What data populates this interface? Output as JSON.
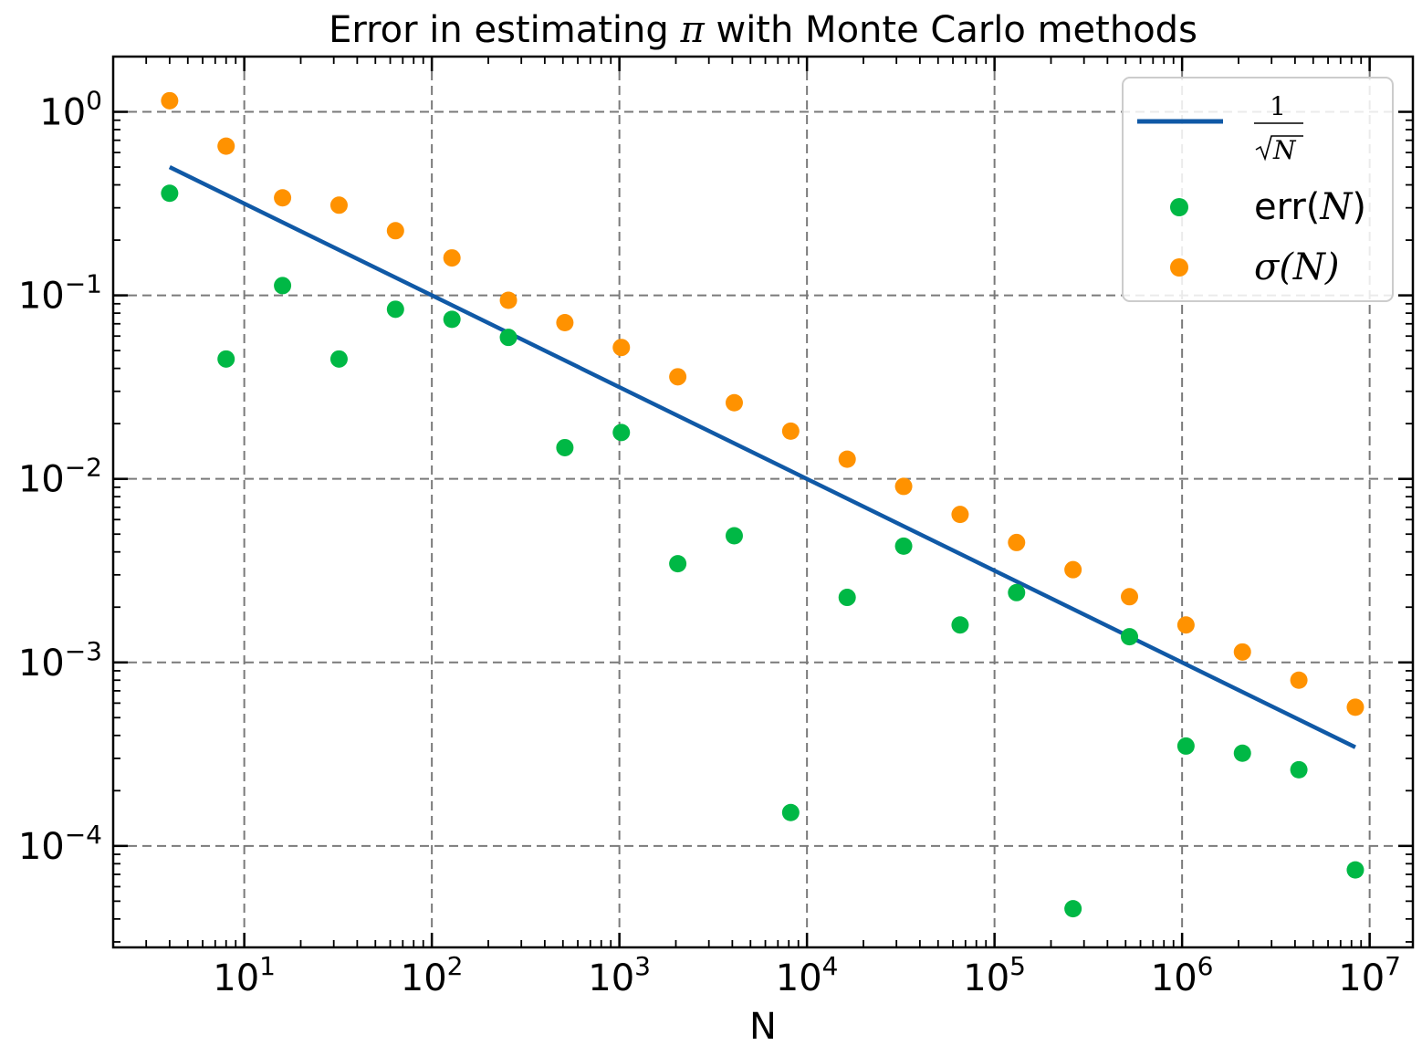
{
  "chart_data": {
    "type": "scatter",
    "title": "Error in estimating π with Monte Carlo methods",
    "title_parts": {
      "before": "Error in estimating ",
      "math": "π",
      "after": " with Monte Carlo methods"
    },
    "xlabel": "N",
    "ylabel": "",
    "xscale": "log",
    "yscale": "log",
    "xlim": [
      2,
      17000000
    ],
    "ylim": [
      2.8e-05,
      2.0
    ],
    "x_ticks": [
      {
        "value": 10,
        "base": "10",
        "exp": "1"
      },
      {
        "value": 100,
        "base": "10",
        "exp": "2"
      },
      {
        "value": 1000,
        "base": "10",
        "exp": "3"
      },
      {
        "value": 10000,
        "base": "10",
        "exp": "4"
      },
      {
        "value": 100000,
        "base": "10",
        "exp": "5"
      },
      {
        "value": 1000000,
        "base": "10",
        "exp": "6"
      },
      {
        "value": 10000000,
        "base": "10",
        "exp": "7"
      }
    ],
    "y_ticks": [
      {
        "value": 1,
        "base": "10",
        "exp": "0"
      },
      {
        "value": 0.1,
        "base": "10",
        "exp": "−1"
      },
      {
        "value": 0.01,
        "base": "10",
        "exp": "−2"
      },
      {
        "value": 0.001,
        "base": "10",
        "exp": "−3"
      },
      {
        "value": 0.0001,
        "base": "10",
        "exp": "−4"
      }
    ],
    "grid": true,
    "legend_position": "top-right",
    "series": [
      {
        "name": "1/√N",
        "legend_numerator": "1",
        "legend_denominator": "N",
        "type": "line",
        "color": "#1059a6",
        "x": [
          4,
          8388608
        ],
        "y": [
          0.5,
          0.000345
        ]
      },
      {
        "name": "err(N)",
        "legend_prefix": "err(",
        "legend_var": "N",
        "legend_suffix": ")",
        "type": "scatter",
        "color": "#00b845",
        "x": [
          4,
          8,
          16,
          32,
          64,
          128,
          256,
          512,
          1024,
          2048,
          4096,
          8192,
          16384,
          32768,
          65536,
          131072,
          262144,
          524288,
          1048576,
          2097152,
          4194304,
          8388608
        ],
        "y": [
          0.36,
          0.045,
          0.113,
          0.045,
          0.084,
          0.074,
          0.059,
          0.0148,
          0.0179,
          0.00345,
          0.0049,
          0.000152,
          0.00226,
          0.0043,
          0.0016,
          0.0024,
          4.55e-05,
          0.00138,
          0.00035,
          0.00032,
          0.00026,
          7.4e-05
        ]
      },
      {
        "name": "σ(N)",
        "legend_prefix": "",
        "legend_var": "σ",
        "legend_suffix": "(N)",
        "type": "scatter",
        "color": "#ff9200",
        "x": [
          4,
          8,
          16,
          32,
          64,
          128,
          256,
          512,
          1024,
          2048,
          4096,
          8192,
          16384,
          32768,
          65536,
          131072,
          262144,
          524288,
          1048576,
          2097152,
          4194304,
          8388608
        ],
        "y": [
          1.15,
          0.65,
          0.34,
          0.31,
          0.225,
          0.16,
          0.094,
          0.071,
          0.052,
          0.036,
          0.026,
          0.0182,
          0.0128,
          0.0091,
          0.0064,
          0.0045,
          0.0032,
          0.00228,
          0.0016,
          0.00114,
          0.0008,
          0.00057
        ]
      }
    ]
  }
}
